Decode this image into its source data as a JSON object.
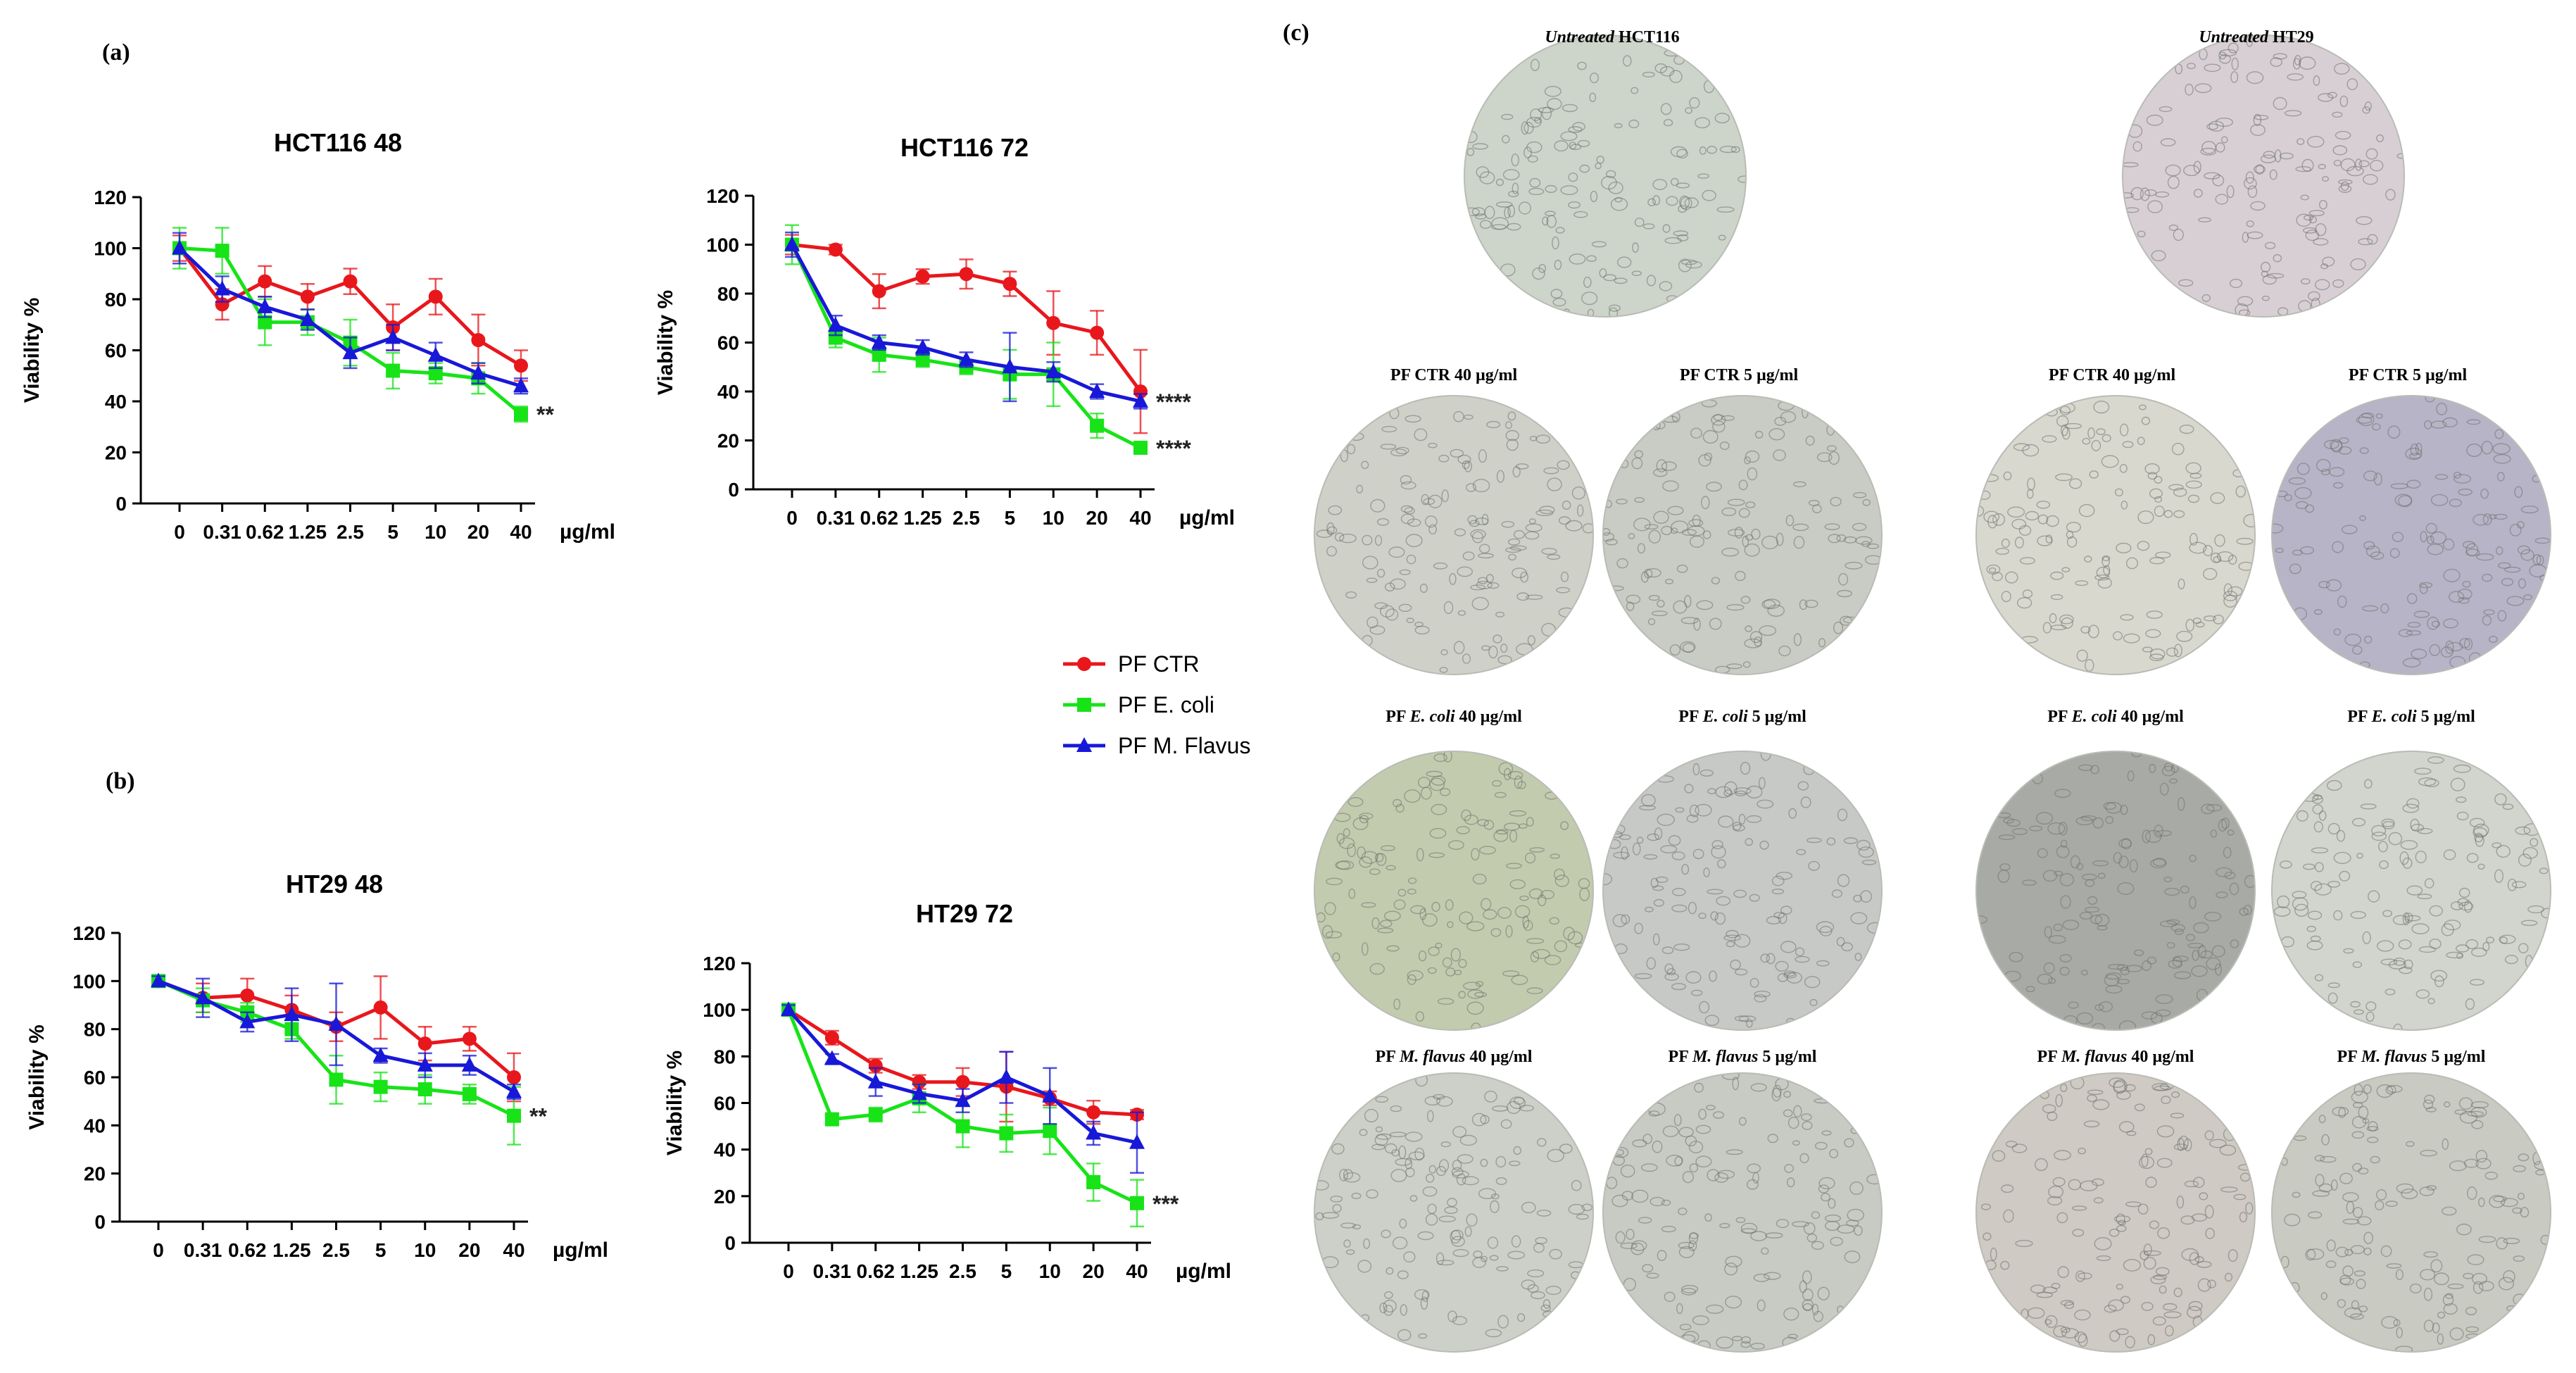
{
  "panels": {
    "a": "(a)",
    "b": "(b)",
    "c": "(c)"
  },
  "colors": {
    "PF CTR": "#e8171c",
    "PF E. coli": "#17e317",
    "PF M. Flavus": "#1818d8"
  },
  "series_markers": {
    "PF CTR": "circle",
    "PF E. coli": "square",
    "PF M. Flavus": "triangle"
  },
  "legend": [
    "PF CTR",
    "PF E. coli",
    "PF M. Flavus"
  ],
  "chart_data": [
    {
      "type": "line",
      "title": "HCT116 48",
      "ylabel": "Viability %",
      "unit_label": "µg/ml",
      "ylim": [
        0,
        120
      ],
      "yticks": [
        0,
        20,
        40,
        60,
        80,
        100,
        120
      ],
      "categories": [
        "0",
        "0.31",
        "0.62",
        "1.25",
        "2.5",
        "5",
        "10",
        "20",
        "40"
      ],
      "series": [
        {
          "name": "PF CTR",
          "values": [
            100,
            78,
            87,
            81,
            87,
            69,
            81,
            64,
            54
          ],
          "errors": [
            5,
            6,
            6,
            5,
            5,
            9,
            7,
            10,
            6
          ]
        },
        {
          "name": "PF E. coli",
          "values": [
            100,
            99,
            71,
            71,
            63,
            52,
            51,
            49,
            35
          ],
          "errors": [
            8,
            9,
            9,
            5,
            9,
            7,
            4,
            6,
            3
          ]
        },
        {
          "name": "PF M. Flavus",
          "values": [
            100,
            84,
            77,
            72,
            59,
            65,
            58,
            51,
            46
          ],
          "errors": [
            6,
            5,
            4,
            4,
            6,
            5,
            5,
            4,
            3
          ]
        }
      ],
      "annotations": [
        {
          "text": "**",
          "series": "PF E. coli"
        }
      ]
    },
    {
      "type": "line",
      "title": "HCT116 72",
      "ylabel": "Viability %",
      "unit_label": "µg/ml",
      "ylim": [
        0,
        120
      ],
      "yticks": [
        0,
        20,
        40,
        60,
        80,
        100,
        120
      ],
      "categories": [
        "0",
        "0.31",
        "0.62",
        "1.25",
        "2.5",
        "5",
        "10",
        "20",
        "40"
      ],
      "series": [
        {
          "name": "PF CTR",
          "values": [
            100,
            98,
            81,
            87,
            88,
            84,
            68,
            64,
            40
          ],
          "errors": [
            4,
            2,
            7,
            3,
            6,
            5,
            13,
            9,
            17
          ]
        },
        {
          "name": "PF E. coli",
          "values": [
            100,
            62,
            55,
            53,
            50,
            47,
            47,
            26,
            17
          ],
          "errors": [
            8,
            4,
            7,
            3,
            3,
            10,
            13,
            5,
            2
          ]
        },
        {
          "name": "PF M. Flavus",
          "values": [
            100,
            67,
            60,
            58,
            53,
            50,
            48,
            40,
            36
          ],
          "errors": [
            5,
            4,
            3,
            3,
            3,
            14,
            4,
            3,
            3
          ]
        }
      ],
      "annotations": [
        {
          "text": "****",
          "series": "PF M. Flavus"
        },
        {
          "text": "****",
          "series": "PF E. coli"
        }
      ]
    },
    {
      "type": "line",
      "title": "HT29 48",
      "ylabel": "Viability %",
      "unit_label": "µg/ml",
      "ylim": [
        0,
        120
      ],
      "yticks": [
        0,
        20,
        40,
        60,
        80,
        100,
        120
      ],
      "categories": [
        "0",
        "0.31",
        "0.62",
        "1.25",
        "2.5",
        "5",
        "10",
        "20",
        "40"
      ],
      "series": [
        {
          "name": "PF CTR",
          "values": [
            100,
            93,
            94,
            88,
            81,
            89,
            74,
            76,
            60
          ],
          "errors": [
            2,
            6,
            7,
            6,
            6,
            13,
            7,
            5,
            10
          ]
        },
        {
          "name": "PF E. coli",
          "values": [
            100,
            92,
            87,
            80,
            59,
            56,
            55,
            53,
            44
          ],
          "errors": [
            2,
            5,
            4,
            4,
            10,
            6,
            6,
            4,
            12
          ]
        },
        {
          "name": "PF M. Flavus",
          "values": [
            100,
            93,
            83,
            86,
            82,
            69,
            65,
            65,
            54
          ],
          "errors": [
            2,
            8,
            4,
            11,
            17,
            3,
            5,
            4,
            3
          ]
        }
      ],
      "annotations": [
        {
          "text": "**",
          "series": "PF E. coli"
        }
      ]
    },
    {
      "type": "line",
      "title": "HT29 72",
      "ylabel": "Viability %",
      "unit_label": "µg/ml",
      "ylim": [
        0,
        120
      ],
      "yticks": [
        0,
        20,
        40,
        60,
        80,
        100,
        120
      ],
      "categories": [
        "0",
        "0.31",
        "0.62",
        "1.25",
        "2.5",
        "5",
        "10",
        "20",
        "40"
      ],
      "series": [
        {
          "name": "PF CTR",
          "values": [
            100,
            88,
            76,
            69,
            69,
            67,
            62,
            56,
            55
          ],
          "errors": [
            2,
            3,
            3,
            3,
            6,
            15,
            3,
            5,
            2
          ]
        },
        {
          "name": "PF E. coli",
          "values": [
            100,
            53,
            55,
            62,
            50,
            47,
            48,
            26,
            17
          ],
          "errors": [
            2,
            2,
            3,
            6,
            9,
            8,
            10,
            8,
            10
          ]
        },
        {
          "name": "PF M. Flavus",
          "values": [
            100,
            79,
            69,
            64,
            61,
            71,
            63,
            47,
            43
          ],
          "errors": [
            2,
            2,
            6,
            4,
            5,
            11,
            12,
            5,
            13
          ]
        }
      ],
      "annotations": [
        {
          "text": "***",
          "series": "PF E. coli"
        }
      ]
    }
  ],
  "micrographs": {
    "hct116_untreated": {
      "prefix": "",
      "italic": "Untreated",
      "suffix": " HCT116",
      "bg": "#cdd4c9"
    },
    "ht29_untreated": {
      "prefix": "",
      "italic": "Untreated",
      "suffix": " HT29",
      "bg": "#d8cfd4"
    },
    "hct116_ctr40": {
      "prefix": "PF CTR 40 µg/ml",
      "italic": "",
      "suffix": "",
      "bg": "#cfd1c9"
    },
    "hct116_ctr5": {
      "prefix": "PF CTR 5 µg/ml",
      "italic": "",
      "suffix": "",
      "bg": "#c9ccc4"
    },
    "ht29_ctr40": {
      "prefix": "PF CTR 40 µg/ml",
      "italic": "",
      "suffix": "",
      "bg": "#d9d8cf"
    },
    "ht29_ctr5": {
      "prefix": "PF CTR 5 µg/ml",
      "italic": "",
      "suffix": "",
      "bg": "#b7b4c7"
    },
    "hct116_ecoli40": {
      "prefix": "PF ",
      "italic": "E. coli",
      "suffix": "  40 µg/ml",
      "bg": "#c3cbae"
    },
    "hct116_ecoli5": {
      "prefix": "PF ",
      "italic": "E. coli",
      "suffix": " 5 µg/ml",
      "bg": "#c7c9c6"
    },
    "ht29_ecoli40": {
      "prefix": "PF ",
      "italic": "E. coli",
      "suffix": "  40 µg/ml",
      "bg": "#a8aaa6"
    },
    "ht29_ecoli5": {
      "prefix": "PF ",
      "italic": "E. coli",
      "suffix": " 5 µg/ml",
      "bg": "#d2d4ce"
    },
    "hct116_mflavus40": {
      "prefix": "PF ",
      "italic": "M. flavus",
      "suffix": " 40 µg/ml",
      "bg": "#cdd0c8"
    },
    "hct116_mflavus5": {
      "prefix": "PF ",
      "italic": "M. flavus",
      "suffix": " 5 µg/ml",
      "bg": "#c8cbc3"
    },
    "ht29_mflavus40": {
      "prefix": "PF ",
      "italic": "M. flavus",
      "suffix": " 40 µg/ml",
      "bg": "#cfcac3"
    },
    "ht29_mflavus5": {
      "prefix": "PF ",
      "italic": "M. flavus",
      "suffix": " 5 µg/ml",
      "bg": "#c9cac2"
    }
  }
}
